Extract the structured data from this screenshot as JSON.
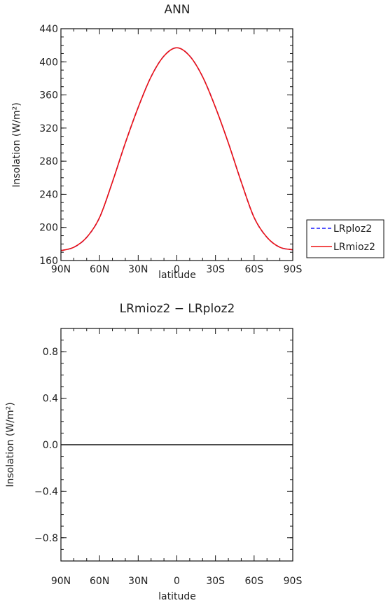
{
  "chart_data": [
    {
      "type": "line",
      "title": "ANN",
      "xlabel": "latitude",
      "ylabel": "Insolation  (W/m²)",
      "xlim": [
        90,
        -90
      ],
      "ylim": [
        160,
        440
      ],
      "x_ticks": [
        {
          "value": 90,
          "label": "90N"
        },
        {
          "value": 60,
          "label": "60N"
        },
        {
          "value": 30,
          "label": "30N"
        },
        {
          "value": 0,
          "label": "0"
        },
        {
          "value": -30,
          "label": "30S"
        },
        {
          "value": -60,
          "label": "60S"
        },
        {
          "value": -90,
          "label": "90S"
        }
      ],
      "y_ticks": [
        {
          "value": 160,
          "label": "160"
        },
        {
          "value": 200,
          "label": "200"
        },
        {
          "value": 240,
          "label": "240"
        },
        {
          "value": 280,
          "label": "280"
        },
        {
          "value": 320,
          "label": "320"
        },
        {
          "value": 360,
          "label": "360"
        },
        {
          "value": 400,
          "label": "400"
        },
        {
          "value": 440,
          "label": "440"
        }
      ],
      "x": [
        90,
        80,
        70,
        60,
        50,
        40,
        30,
        20,
        10,
        0,
        -10,
        -20,
        -30,
        -40,
        -50,
        -60,
        -70,
        -80,
        -90
      ],
      "series": [
        {
          "name": "LRploz2",
          "color": "#1a1aff",
          "dash": "dashed",
          "values": [
            172,
            176,
            188,
            212,
            255,
            302,
            345,
            382,
            407,
            417,
            407,
            382,
            345,
            302,
            255,
            212,
            188,
            176,
            173
          ]
        },
        {
          "name": "LRmioz2",
          "color": "#ee1111",
          "dash": "solid",
          "values": [
            172,
            176,
            188,
            212,
            255,
            302,
            345,
            382,
            407,
            417,
            407,
            382,
            345,
            302,
            255,
            212,
            188,
            176,
            173
          ]
        }
      ],
      "legend": "right",
      "grid": false
    },
    {
      "type": "line",
      "title": "LRmioz2 − LRploz2",
      "xlabel": "latitude",
      "ylabel": "Insolation  (W/m²)",
      "xlim": [
        90,
        -90
      ],
      "ylim": [
        -1,
        1
      ],
      "x_ticks": [
        {
          "value": 90,
          "label": "90N"
        },
        {
          "value": 60,
          "label": "60N"
        },
        {
          "value": 30,
          "label": "30N"
        },
        {
          "value": 0,
          "label": "0"
        },
        {
          "value": -30,
          "label": "30S"
        },
        {
          "value": -60,
          "label": "60S"
        },
        {
          "value": -90,
          "label": "90S"
        }
      ],
      "y_ticks": [
        {
          "value": -0.8,
          "label": "−0.8"
        },
        {
          "value": -0.4,
          "label": "−0.4"
        },
        {
          "value": 0.0,
          "label": "0.0"
        },
        {
          "value": 0.4,
          "label": "0.4"
        },
        {
          "value": 0.8,
          "label": "0.8"
        }
      ],
      "x": [
        90,
        60,
        30,
        0,
        -30,
        -60,
        -90
      ],
      "series": [
        {
          "color": "#111111",
          "dash": "solid",
          "values": [
            0,
            0,
            0,
            0,
            0,
            0,
            0
          ]
        }
      ],
      "grid": false
    }
  ]
}
